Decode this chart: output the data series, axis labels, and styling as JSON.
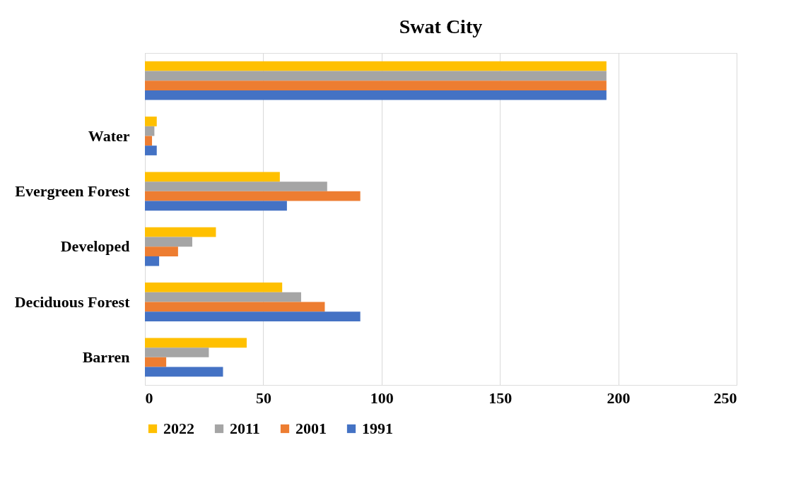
{
  "chart_data": {
    "type": "bar",
    "orientation": "horizontal",
    "title": "Swat City",
    "categories": [
      null,
      "Water",
      "Evergreen Forest",
      "Developed",
      "Deciduous Forest",
      "Barren"
    ],
    "series": [
      {
        "name": "2022",
        "color": "#ffc000",
        "values": [
          195,
          5,
          57,
          30,
          58,
          43
        ]
      },
      {
        "name": "2011",
        "color": "#a5a5a5",
        "values": [
          195,
          4,
          77,
          20,
          66,
          27
        ]
      },
      {
        "name": "2001",
        "color": "#ed7d31",
        "values": [
          195,
          3,
          91,
          14,
          76,
          9
        ]
      },
      {
        "name": "1991",
        "color": "#4472c4",
        "values": [
          195,
          5,
          60,
          6,
          91,
          33
        ]
      }
    ],
    "xlim": [
      0,
      250
    ],
    "xticks": [
      0,
      50,
      100,
      150,
      200,
      250
    ],
    "grid": "x",
    "legend": "bottom"
  }
}
